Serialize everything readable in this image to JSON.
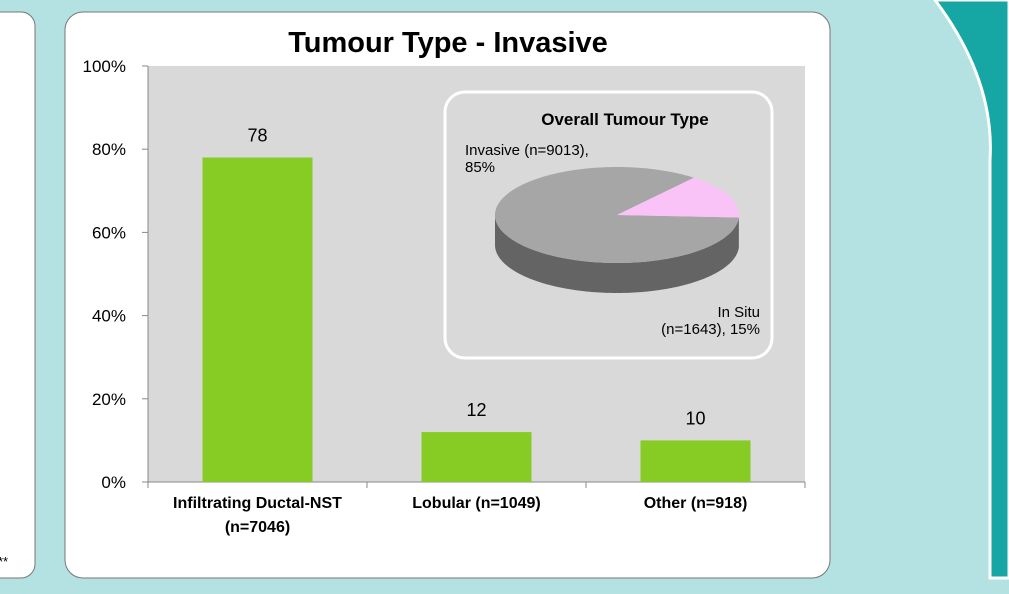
{
  "chart_data": [
    {
      "type": "bar",
      "title": "Tumour Type - Invasive",
      "categories": [
        "Infiltrating Ductal-NST (n=7046)",
        "Lobular (n=1049)",
        "Other (n=918)"
      ],
      "values": [
        78,
        12,
        10
      ],
      "color": "#86cc25",
      "ylim": [
        0,
        100
      ],
      "yticks": [
        {
          "value": 0,
          "label": "0%"
        },
        {
          "value": 20,
          "label": "20%"
        },
        {
          "value": 40,
          "label": "40%"
        },
        {
          "value": 60,
          "label": "60%"
        },
        {
          "value": 80,
          "label": "80%"
        },
        {
          "value": 100,
          "label": "100%"
        }
      ]
    },
    {
      "type": "pie",
      "title": "Overall Tumour Type",
      "labels": [
        "Invasive (n=9013), 85%",
        "In Situ (n=1643), 15%"
      ],
      "values": [
        85,
        15
      ],
      "colors": [
        "#a6a6a6",
        "#f9c3f7"
      ]
    }
  ]
}
